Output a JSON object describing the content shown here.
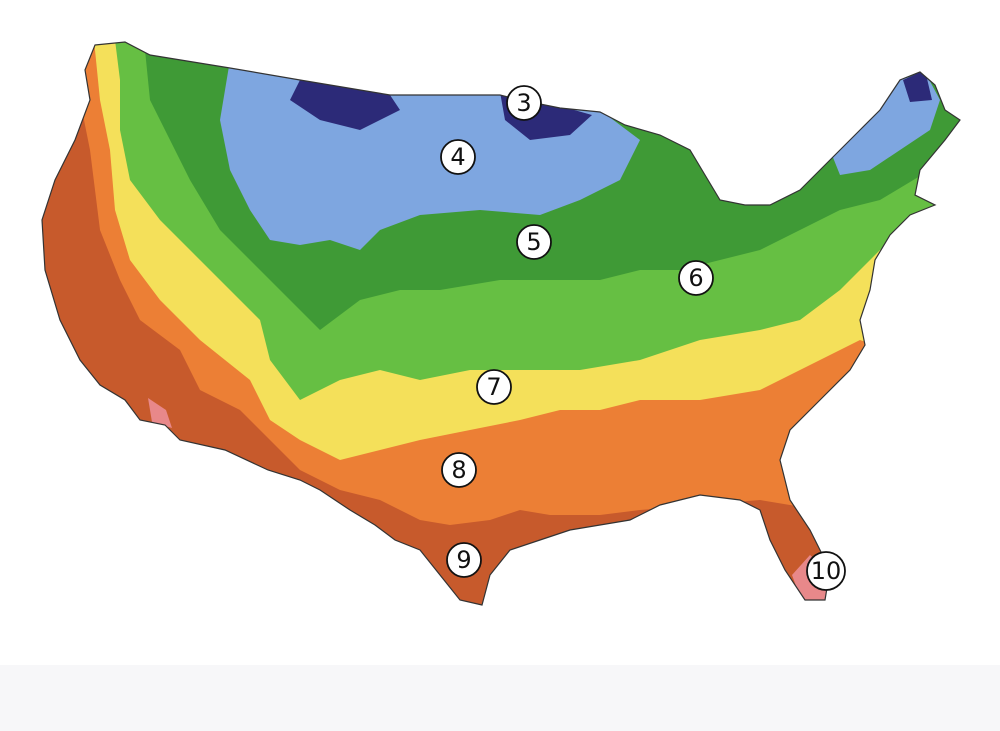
{
  "map": {
    "zone_labels": [
      "3",
      "4",
      "5",
      "6",
      "7",
      "8",
      "9",
      "10"
    ]
  }
}
